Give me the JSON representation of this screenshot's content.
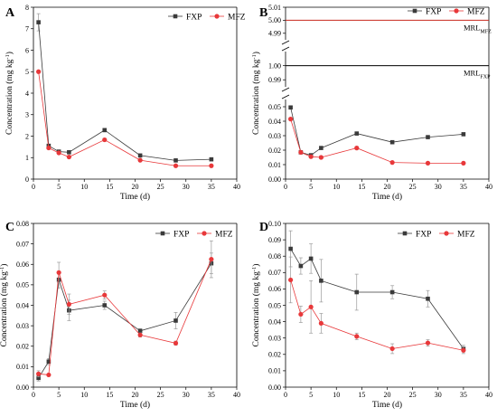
{
  "colors": {
    "FXP": "#3a3a3a",
    "MFZ": "#e8383a",
    "error_bar": "#9a9a9a",
    "mrl_MFZ_line": "#c8281e",
    "mrl_FXP_line": "#000000"
  },
  "chart_data": [
    {
      "panel": "A",
      "type": "line",
      "title": "",
      "xlabel": "Time (d)",
      "ylabel_main": "Concentration (mg kg",
      "ylabel_sup": "-1",
      "ylabel_end": ")",
      "xlim": [
        0,
        40
      ],
      "ylim": [
        0,
        8
      ],
      "xticks": [
        0,
        5,
        10,
        15,
        20,
        25,
        30,
        35,
        40
      ],
      "yticks": [
        0,
        1,
        2,
        3,
        4,
        5,
        6,
        7,
        8
      ],
      "legend_position": "top-right",
      "x": [
        1,
        3,
        5,
        7,
        14,
        21,
        28,
        35
      ],
      "series": [
        {
          "name": "FXP",
          "values": [
            7.3,
            1.55,
            1.28,
            1.25,
            2.28,
            1.1,
            0.87,
            0.92
          ],
          "errors": [
            0.4,
            0.08,
            0.06,
            0.06,
            0.08,
            0.05,
            0.05,
            0.05
          ]
        },
        {
          "name": "MFZ",
          "values": [
            5.0,
            1.45,
            1.22,
            1.03,
            1.83,
            0.88,
            0.62,
            0.62
          ],
          "errors": [
            0.0,
            0.06,
            0.05,
            0.05,
            0.07,
            0.05,
            0.04,
            0.04
          ]
        }
      ]
    },
    {
      "panel": "B",
      "type": "line",
      "title": "",
      "xlabel": "Time (d)",
      "ylabel_main": "Concentration (mg kg",
      "ylabel_sup": "-1",
      "ylabel_end": ")",
      "xlim": [
        0,
        40
      ],
      "xticks": [
        0,
        5,
        10,
        15,
        20,
        25,
        30,
        35,
        40
      ],
      "broken_axis_segments": [
        {
          "range": [
            4.985,
            5.01
          ],
          "ticks": [
            "4.99",
            "5.00",
            "5.01"
          ]
        },
        {
          "range": [
            0.985,
            1.01
          ],
          "ticks": [
            "0.99",
            "1.00"
          ]
        },
        {
          "range": [
            0.0,
            0.055
          ],
          "ticks": [
            "0.00",
            "0.01",
            "0.02",
            "0.03",
            "0.04",
            "0.05"
          ]
        }
      ],
      "legend_position": "top-right",
      "reference_lines": [
        {
          "label": "MRL",
          "sub": "MFZ",
          "value": 5.0
        },
        {
          "label": "MRL",
          "sub": "FXP",
          "value": 1.0
        }
      ],
      "x": [
        1,
        3,
        5,
        7,
        14,
        21,
        28,
        35
      ],
      "series": [
        {
          "name": "FXP",
          "values": [
            0.0495,
            0.0185,
            0.0165,
            0.0215,
            0.0315,
            0.0255,
            0.029,
            0.031
          ],
          "errors": [
            0.001,
            0.001,
            0.001,
            0.001,
            0.001,
            0.001,
            0.001,
            0.001
          ]
        },
        {
          "name": "MFZ",
          "values": [
            0.0415,
            0.0185,
            0.0155,
            0.015,
            0.0215,
            0.0115,
            0.011,
            0.011
          ],
          "errors": [
            0.001,
            0.001,
            0.001,
            0.001,
            0.001,
            0.0005,
            0.0005,
            0.0005
          ]
        }
      ]
    },
    {
      "panel": "C",
      "type": "line",
      "title": "",
      "xlabel": "Time (d)",
      "ylabel_main": "Concentration (mg kg",
      "ylabel_sup": "-1",
      "ylabel_end": ")",
      "xlim": [
        0,
        40
      ],
      "ylim": [
        0,
        0.08
      ],
      "xticks": [
        0,
        5,
        10,
        15,
        20,
        25,
        30,
        35,
        40
      ],
      "yticks": [
        "0.00",
        "0.01",
        "0.02",
        "0.03",
        "0.04",
        "0.05",
        "0.06",
        "0.07",
        "0.08"
      ],
      "legend_position": "top-center",
      "x": [
        1,
        3,
        5,
        7,
        14,
        21,
        28,
        35
      ],
      "series": [
        {
          "name": "FXP",
          "values": [
            0.0045,
            0.0125,
            0.0525,
            0.0375,
            0.04,
            0.0275,
            0.0325,
            0.0605
          ],
          "errors": [
            0.0015,
            0.0015,
            0.004,
            0.005,
            0.002,
            0.001,
            0.004,
            0.005
          ]
        },
        {
          "name": "MFZ",
          "values": [
            0.0065,
            0.006,
            0.056,
            0.0405,
            0.045,
            0.0255,
            0.0215,
            0.0625
          ],
          "errors": [
            0.0015,
            0.0005,
            0.005,
            0.005,
            0.002,
            0.001,
            0.001,
            0.009
          ]
        }
      ]
    },
    {
      "panel": "D",
      "type": "line",
      "title": "",
      "xlabel": "Time (d)",
      "ylabel_main": "Concentration (mg kg",
      "ylabel_sup": "-1",
      "ylabel_end": ")",
      "xlim": [
        0,
        40
      ],
      "ylim": [
        0,
        0.1
      ],
      "xticks": [
        0,
        5,
        10,
        15,
        20,
        25,
        30,
        35,
        40
      ],
      "yticks": [
        "0.00",
        "0.01",
        "0.02",
        "0.03",
        "0.04",
        "0.05",
        "0.06",
        "0.07",
        "0.08",
        "0.09",
        "0.10"
      ],
      "legend_position": "top-center",
      "x": [
        1,
        3,
        5,
        7,
        14,
        21,
        28,
        35
      ],
      "series": [
        {
          "name": "FXP",
          "values": [
            0.0845,
            0.074,
            0.0785,
            0.065,
            0.058,
            0.058,
            0.054,
            0.0235
          ],
          "errors": [
            0.011,
            0.005,
            0.009,
            0.013,
            0.011,
            0.004,
            0.005,
            0.002
          ]
        },
        {
          "name": "MFZ",
          "values": [
            0.0655,
            0.0445,
            0.049,
            0.039,
            0.031,
            0.0235,
            0.027,
            0.0225
          ],
          "errors": [
            0.014,
            0.005,
            0.016,
            0.006,
            0.002,
            0.003,
            0.002,
            0.002
          ]
        }
      ]
    }
  ]
}
